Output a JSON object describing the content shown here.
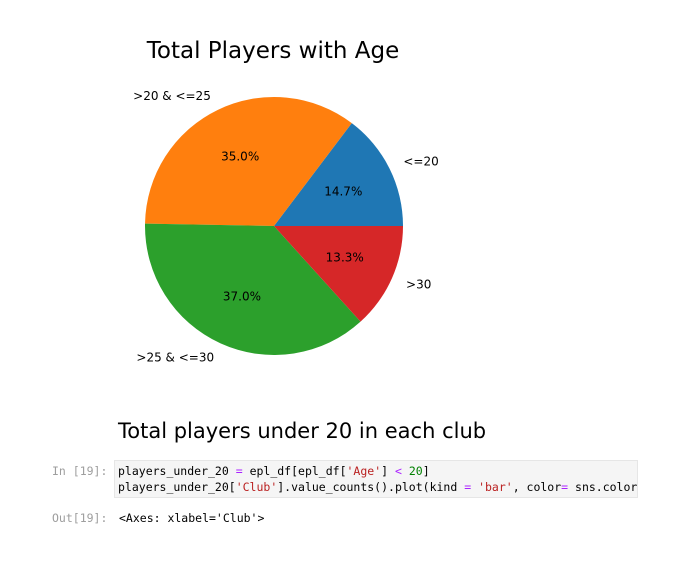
{
  "chart_data": {
    "type": "pie",
    "title": "Total Players with Age",
    "labels": [
      "<=20",
      ">20 & <=25",
      ">25 & <=30",
      ">30"
    ],
    "values": [
      14.7,
      35.0,
      37.0,
      13.3
    ],
    "percent_labels": [
      "14.7%",
      "35.0%",
      "37.0%",
      "13.3%"
    ],
    "colors": [
      "#1f77b4",
      "#ff7f0e",
      "#2ca02c",
      "#d62728"
    ],
    "start_angle": 0,
    "direction": "counterclockwise"
  },
  "notebook": {
    "heading": "Total players under 20 in each club",
    "input_prompt": "In [19]:",
    "code": {
      "line1": {
        "a": "players_under_20 ",
        "op1": "=",
        "b": " epl_df[epl_df[",
        "s1": "'Age'",
        "c": "] ",
        "op2": "<",
        "d": " ",
        "n1": "20",
        "e": "]"
      },
      "line2": {
        "a": "players_under_20[",
        "s1": "'Club'",
        "b": "].value_counts().plot(kind ",
        "op1": "=",
        "c": " ",
        "s2": "'bar'",
        "d": ", color",
        "op2": "=",
        "e": " sns.color_"
      }
    },
    "output_prompt": "Out[19]:",
    "output_text": "<Axes: xlabel='Club'>"
  }
}
